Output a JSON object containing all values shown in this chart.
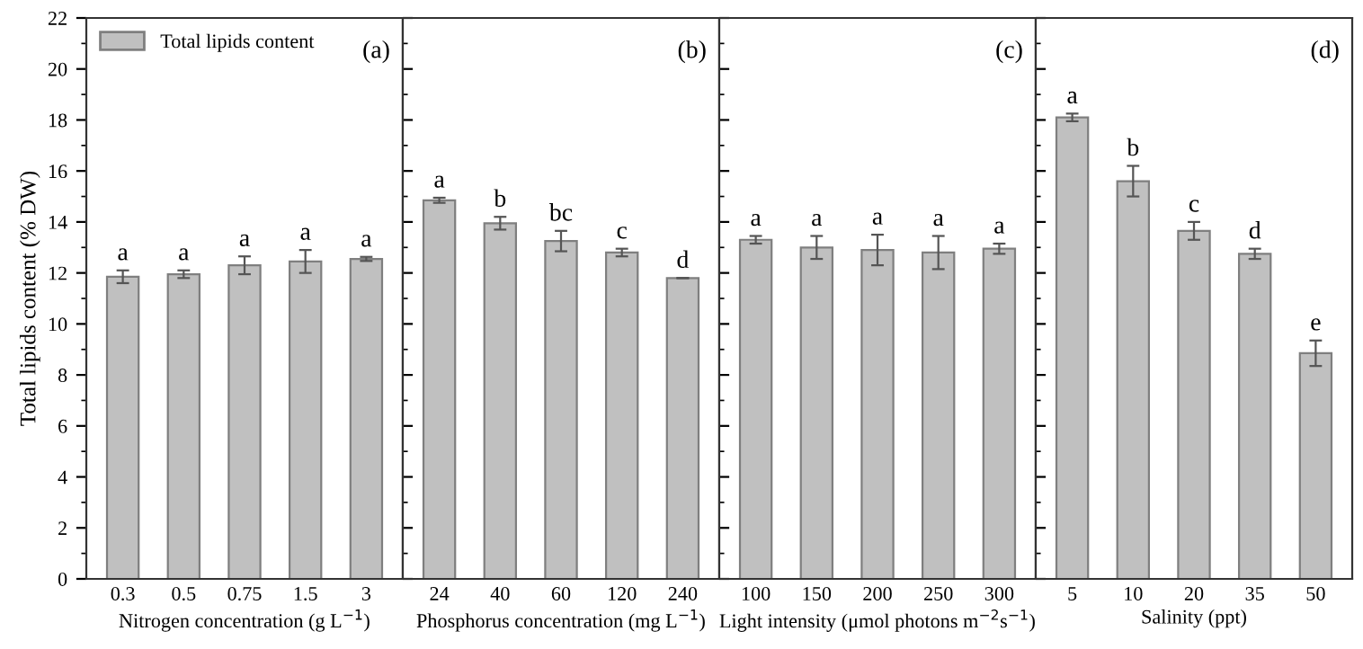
{
  "chart_data": [
    {
      "type": "bar",
      "xlabel": "Nitrogen concentration (g L$^{−1}$)",
      "ylabel": "Total lipids content (% DW)",
      "categories": [
        "0.3",
        "0.5",
        "0.75",
        "1.5",
        "3"
      ],
      "series": [
        {
          "name": "Total lipids content",
          "color": "#c0c0c0",
          "values": [
            11.85,
            11.95,
            12.3,
            12.45,
            12.55
          ],
          "errors": [
            0.25,
            0.15,
            0.35,
            0.45,
            0.08
          ]
        }
      ],
      "ylim": [
        0,
        22
      ],
      "yticks": [
        0,
        2,
        4,
        6,
        8,
        10,
        12,
        14,
        16,
        18,
        20,
        22
      ],
      "legend": "top left",
      "annotations": [
        "(a)",
        {
          "text": "a",
          "x": "0.3",
          "y": 11.85
        },
        {
          "text": "a",
          "x": "0.5",
          "y": 11.95
        },
        {
          "text": "a",
          "x": "0.75",
          "y": 12.3
        },
        {
          "text": "a",
          "x": "1.5",
          "y": 12.45
        },
        {
          "text": "a",
          "x": "3",
          "y": 12.55
        }
      ]
    },
    {
      "type": "bar",
      "xlabel": "Phosphorus concentration (mg L$^{−1}$)",
      "categories": [
        "24",
        "40",
        "60",
        "120",
        "240"
      ],
      "series": [
        {
          "color": "#c0c0c0",
          "values": [
            14.85,
            13.95,
            13.25,
            12.8,
            11.8
          ],
          "errors": [
            0.1,
            0.25,
            0.4,
            0.15,
            null
          ]
        }
      ],
      "ylim": [
        0,
        22
      ],
      "yticks": [
        0,
        2,
        4,
        6,
        8,
        10,
        12,
        14,
        16,
        18,
        20,
        22
      ],
      "tick_labels": "x",
      "annotations": [
        "(b)",
        {
          "text": "a",
          "x": "24",
          "y": 14.85
        },
        {
          "text": "b",
          "x": "40",
          "y": 13.95
        },
        {
          "text": "bc",
          "x": "60",
          "y": 13.25
        },
        {
          "text": "c",
          "x": "120",
          "y": 12.8
        },
        {
          "text": "d",
          "x": "240",
          "y": 11.8
        }
      ]
    },
    {
      "type": "bar",
      "xlabel": "Light intensity (μmol photons m$^{−2}$s$^{−1}$)",
      "categories": [
        "100",
        "150",
        "200",
        "250",
        "300"
      ],
      "series": [
        {
          "color": "#c0c0c0",
          "values": [
            13.3,
            13.0,
            12.9,
            12.8,
            12.95
          ],
          "errors": [
            0.15,
            0.45,
            0.6,
            0.65,
            0.2
          ]
        }
      ],
      "ylim": [
        0,
        22
      ],
      "yticks": [
        0,
        2,
        4,
        6,
        8,
        10,
        12,
        14,
        16,
        18,
        20,
        22
      ],
      "tick_labels": "x",
      "annotations": [
        "(c)",
        {
          "text": "a",
          "x": "100",
          "y": 13.3
        },
        {
          "text": "a",
          "x": "150",
          "y": 13.0
        },
        {
          "text": "a",
          "x": "200",
          "y": 12.9
        },
        {
          "text": "a",
          "x": "250",
          "y": 12.8
        },
        {
          "text": "a",
          "x": "300",
          "y": 12.95
        }
      ]
    },
    {
      "type": "bar",
      "xlabel": "Salinity (ppt)",
      "categories": [
        "5",
        "10",
        "20",
        "35",
        "50"
      ],
      "series": [
        {
          "color": "#c0c0c0",
          "values": [
            18.1,
            15.6,
            13.65,
            12.75,
            8.85
          ],
          "errors": [
            0.15,
            0.6,
            0.35,
            0.2,
            0.5
          ]
        }
      ],
      "ylim": [
        0,
        22
      ],
      "yticks": [
        0,
        2,
        4,
        6,
        8,
        10,
        12,
        14,
        16,
        18,
        20,
        22
      ],
      "tick_labels": "x",
      "annotations": [
        "(d)",
        {
          "text": "a",
          "x": "5",
          "y": 18.1
        },
        {
          "text": "b",
          "x": "10",
          "y": 15.6
        },
        {
          "text": "c",
          "x": "20",
          "y": 13.65
        },
        {
          "text": "d",
          "x": "35",
          "y": 12.75
        },
        {
          "text": "e",
          "x": "50",
          "y": 8.85
        }
      ]
    }
  ]
}
